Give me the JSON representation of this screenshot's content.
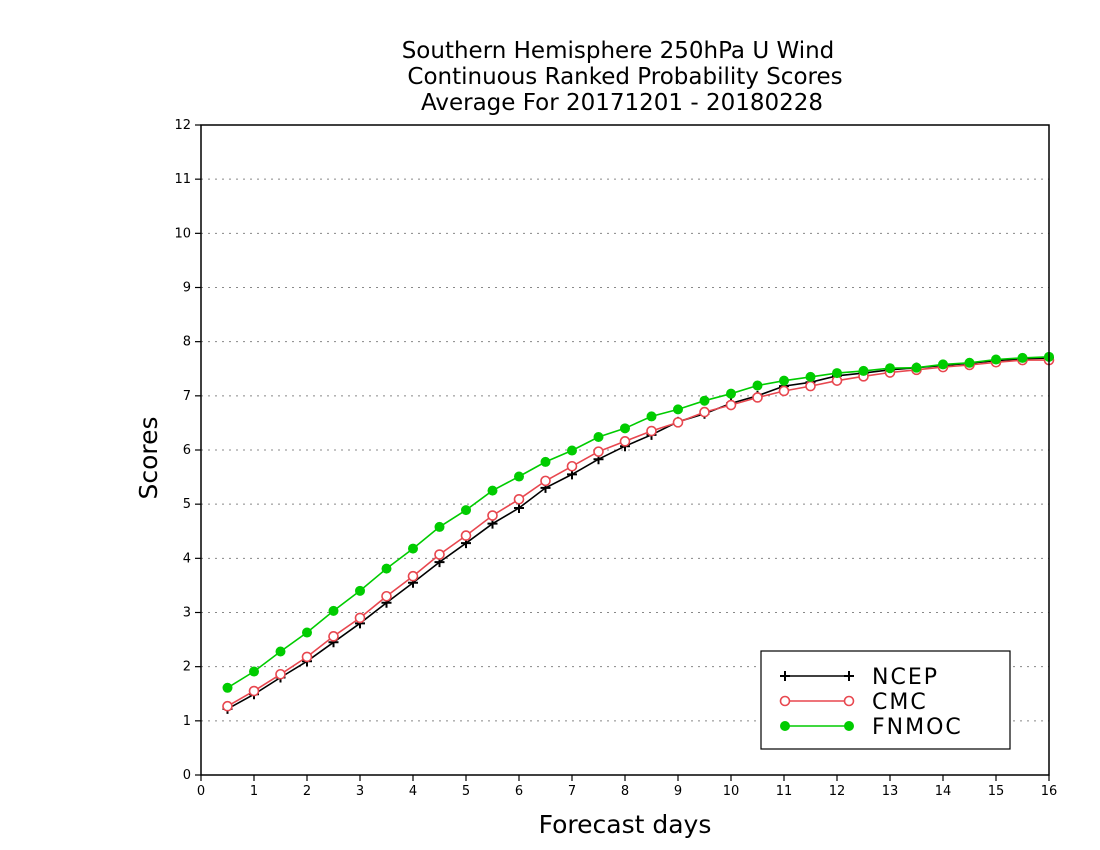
{
  "chart_data": {
    "type": "line",
    "title": [
      "Southern Hemisphere 250hPa U Wind",
      "Continuous Ranked Probability Scores",
      "Average For 20171201 - 20180228"
    ],
    "xlabel": "Forecast days",
    "ylabel": "Scores",
    "xlim": [
      0,
      16
    ],
    "ylim": [
      0,
      12
    ],
    "xticks": [
      0,
      1,
      2,
      3,
      4,
      5,
      6,
      7,
      8,
      9,
      10,
      11,
      12,
      13,
      14,
      15,
      16
    ],
    "yticks": [
      0,
      1,
      2,
      3,
      4,
      5,
      6,
      7,
      8,
      9,
      10,
      11,
      12
    ],
    "grid": "horizontal dotted",
    "legend_position": "bottom-right",
    "x": [
      0.5,
      1,
      1.5,
      2,
      2.5,
      3,
      3.5,
      4,
      4.5,
      5,
      5.5,
      6,
      6.5,
      7,
      7.5,
      8,
      8.5,
      9,
      9.5,
      10,
      10.5,
      11,
      11.5,
      12,
      12.5,
      13,
      13.5,
      14,
      14.5,
      15,
      15.5,
      16
    ],
    "series": [
      {
        "name": "NCEP",
        "color": "#000000",
        "marker": "plus",
        "values": [
          1.22,
          1.49,
          1.8,
          2.1,
          2.45,
          2.8,
          3.18,
          3.55,
          3.93,
          4.28,
          4.64,
          4.93,
          5.3,
          5.55,
          5.83,
          6.07,
          6.28,
          6.52,
          6.67,
          6.86,
          7.0,
          7.18,
          7.25,
          7.37,
          7.42,
          7.48,
          7.52,
          7.56,
          7.6,
          7.65,
          7.68,
          7.7
        ]
      },
      {
        "name": "CMC",
        "color": "#e8474f",
        "marker": "open-circle",
        "values": [
          1.27,
          1.55,
          1.86,
          2.18,
          2.56,
          2.9,
          3.3,
          3.67,
          4.07,
          4.42,
          4.79,
          5.09,
          5.43,
          5.7,
          5.97,
          6.16,
          6.35,
          6.51,
          6.7,
          6.83,
          6.97,
          7.09,
          7.18,
          7.28,
          7.36,
          7.43,
          7.48,
          7.53,
          7.57,
          7.62,
          7.66,
          7.66
        ]
      },
      {
        "name": "FNMOC",
        "color": "#00cc00",
        "marker": "filled-circle",
        "values": [
          1.61,
          1.91,
          2.28,
          2.63,
          3.03,
          3.4,
          3.81,
          4.18,
          4.58,
          4.89,
          5.25,
          5.51,
          5.78,
          5.99,
          6.24,
          6.4,
          6.62,
          6.75,
          6.91,
          7.04,
          7.19,
          7.28,
          7.35,
          7.42,
          7.46,
          7.51,
          7.52,
          7.58,
          7.61,
          7.67,
          7.7,
          7.72
        ]
      }
    ]
  }
}
